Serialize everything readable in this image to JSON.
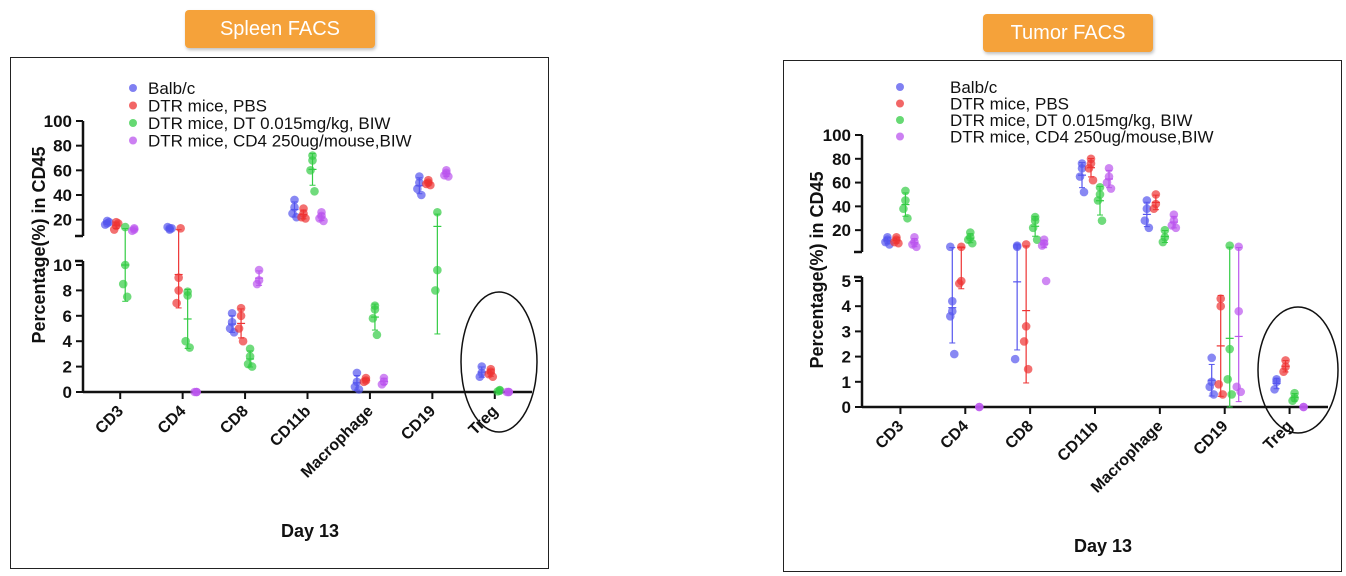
{
  "panels": [
    {
      "badge": "Spleen FACS",
      "ylabel": "Percentage(%) in CD45",
      "xlabel": "Day 13",
      "legend": [
        "Balb/c",
        "DTR mice, PBS",
        "DTR mice, DT 0.015mg/kg, BIW",
        "DTR mice, CD4 250ug/mouse,BIW"
      ],
      "lower_ticks": [
        "0",
        "2",
        "4",
        "6",
        "8",
        "10"
      ],
      "upper_ticks": [
        "20",
        "40",
        "60",
        "80",
        "100"
      ]
    },
    {
      "badge": "Tumor FACS",
      "ylabel": "Percentage(%) in CD45",
      "xlabel": "Day 13",
      "legend": [
        "Balb/c",
        "DTR mice, PBS",
        "DTR mice, DT 0.015mg/kg, BIW",
        "DTR mice, CD4 250ug/mouse,BIW"
      ],
      "lower_ticks": [
        "0",
        "1",
        "2",
        "3",
        "4",
        "5"
      ],
      "upper_ticks": [
        "20",
        "40",
        "60",
        "80",
        "100"
      ]
    }
  ],
  "colors": {
    "series": [
      "#5555ee",
      "#ee3333",
      "#33cc44",
      "#bb55ee"
    ],
    "badge": "#f5a23a"
  },
  "chart_data": [
    {
      "type": "scatter",
      "title": "Spleen FACS",
      "xlabel": "Day 13",
      "ylabel": "Percentage(%) in CD45",
      "categories": [
        "CD3",
        "CD4",
        "CD8",
        "CD11b",
        "Macrophage",
        "CD19",
        "Treg"
      ],
      "y_axis_break": {
        "lower": [
          0,
          10
        ],
        "upper": [
          10,
          100
        ]
      },
      "legend_position": "top",
      "annotation": "ellipse around Treg",
      "series": [
        {
          "name": "Balb/c",
          "values": [
            [
              19,
              17,
              16,
              18
            ],
            [
              13,
              12,
              14,
              13
            ],
            [
              5.5,
              6.2,
              5,
              4.7
            ],
            [
              36,
              30,
              25,
              22
            ],
            [
              1.5,
              0.8,
              0.4,
              0.2
            ],
            [
              55,
              50,
              45,
              40
            ],
            [
              2,
              1.5,
              1.2
            ]
          ]
        },
        {
          "name": "DTR mice, PBS",
          "values": [
            [
              18,
              15,
              12,
              17
            ],
            [
              9,
              8,
              7,
              13
            ],
            [
              6.6,
              6,
              5,
              4
            ],
            [
              29,
              25,
              22,
              21
            ],
            [
              1.1,
              0.9,
              0.8
            ],
            [
              52,
              50,
              49,
              48
            ],
            [
              1.8,
              1.6,
              1.4,
              1.2
            ]
          ]
        },
        {
          "name": "DTR mice, DT 0.015mg/kg, BIW",
          "values": [
            [
              14,
              10,
              8.5,
              7.5
            ],
            [
              7.9,
              7.6,
              4,
              3.5
            ],
            [
              3.4,
              2.8,
              2.2,
              2
            ],
            [
              72,
              68,
              60,
              43
            ],
            [
              6.8,
              6.5,
              5.8,
              4.5
            ],
            [
              26,
              9.6,
              8
            ],
            [
              0.15,
              0.1,
              0.05
            ]
          ]
        },
        {
          "name": "DTR mice, CD4 250ug/mouse,BIW",
          "values": [
            [
              13,
              12,
              11
            ],
            [
              0,
              0,
              0
            ],
            [
              9.6,
              8.8,
              8.5
            ],
            [
              26,
              23,
              21,
              19
            ],
            [
              1.1,
              0.8,
              0.6
            ],
            [
              60,
              58,
              56,
              55
            ],
            [
              0,
              0,
              0
            ]
          ]
        }
      ]
    },
    {
      "type": "scatter",
      "title": "Tumor FACS",
      "xlabel": "Day 13",
      "ylabel": "Percentage(%) in CD45",
      "categories": [
        "CD3",
        "CD4",
        "CD8",
        "CD11b",
        "Macrophage",
        "CD19",
        "Treg"
      ],
      "y_axis_break": {
        "lower": [
          0,
          5
        ],
        "upper": [
          5,
          100
        ]
      },
      "legend_position": "top",
      "annotation": "ellipse around Treg",
      "series": [
        {
          "name": "Balb/c",
          "values": [
            [
              14,
              12,
              10,
              8
            ],
            [
              4.2,
              3.8,
              3.6,
              2.1,
              6
            ],
            [
              7,
              6,
              1.9
            ],
            [
              76,
              72,
              65,
              52
            ],
            [
              45,
              38,
              28,
              22
            ],
            [
              1.95,
              1,
              0.8,
              0.5
            ],
            [
              1.1,
              1,
              0.7
            ]
          ]
        },
        {
          "name": "DTR mice, PBS",
          "values": [
            [
              14,
              12,
              10,
              9
            ],
            [
              6,
              5,
              4.9
            ],
            [
              8,
              3.2,
              2.6,
              1.5
            ],
            [
              80,
              76,
              72,
              62
            ],
            [
              50,
              42,
              38
            ],
            [
              4.3,
              4,
              0.9,
              0.5
            ],
            [
              1.85,
              1.6,
              1.4
            ]
          ]
        },
        {
          "name": "DTR mice, DT 0.015mg/kg, BIW",
          "values": [
            [
              53,
              45,
              38,
              30
            ],
            [
              18,
              14,
              12,
              9
            ],
            [
              31,
              28,
              22,
              12
            ],
            [
              56,
              50,
              45,
              28
            ],
            [
              20,
              14,
              10
            ],
            [
              7,
              2.3,
              1.1,
              0.5
            ],
            [
              0.55,
              0.35,
              0.25
            ]
          ]
        },
        {
          "name": "DTR mice, CD4 250ug/mouse,BIW",
          "values": [
            [
              14,
              10,
              8,
              6
            ],
            [
              0,
              0
            ],
            [
              12,
              9,
              7,
              5
            ],
            [
              72,
              65,
              60,
              55
            ],
            [
              33,
              28,
              24,
              22
            ],
            [
              6,
              3.8,
              0.8,
              0.6
            ],
            [
              0,
              0
            ]
          ]
        }
      ]
    }
  ]
}
